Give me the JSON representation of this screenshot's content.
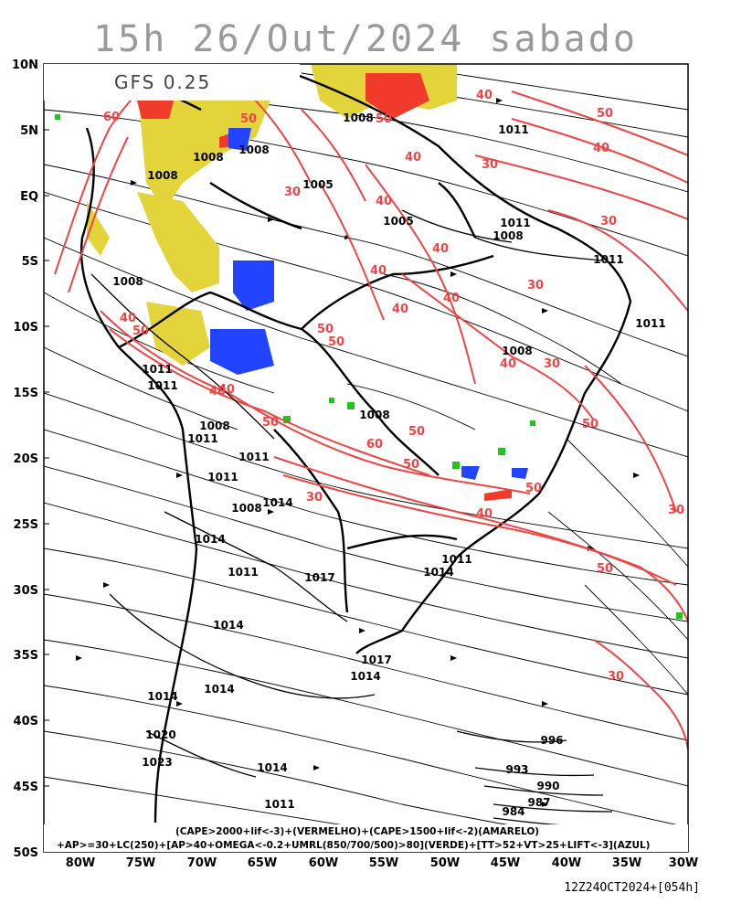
{
  "title": "15h 26/Out/2024 sabado",
  "model": "GFS 0.25",
  "run_stamp": "12Z24OCT2024+[054h]",
  "legend_line1": "(CAPE>2000+lif<-3)+(VERMELHO)+(CAPE>1500+lif<-2)(AMARELO)",
  "legend_line2": "+AP>=30+LC(250)+[AP>40+OMEGA<-0.2+UMRL(850/700/500)>80](VERDE)+[TT>52+VT>25+LIFT<-3](AZUL)",
  "lat_labels": [
    "10N",
    "5N",
    "EQ",
    "5S",
    "10S",
    "15S",
    "20S",
    "25S",
    "30S",
    "35S",
    "40S",
    "45S",
    "50S"
  ],
  "lon_labels": [
    "80W",
    "75W",
    "70W",
    "65W",
    "60W",
    "55W",
    "50W",
    "45W",
    "40W",
    "35W",
    "30W"
  ],
  "isobar_labels": [
    "1008",
    "1008",
    "1008",
    "1005",
    "1011",
    "1008",
    "1005",
    "1011",
    "1008",
    "1011",
    "1008",
    "1008",
    "1011",
    "1011",
    "1008",
    "1011",
    "1008",
    "1011",
    "1011",
    "1011",
    "1014",
    "1014",
    "1011",
    "1017",
    "1011",
    "1014",
    "1014",
    "1017",
    "1014",
    "1014",
    "1020",
    "1023",
    "1014",
    "1011",
    "996",
    "993",
    "990",
    "987",
    "984",
    "1014",
    "1008"
  ],
  "jet_labels": [
    "60",
    "50",
    "50",
    "40",
    "40",
    "40",
    "30",
    "50",
    "40",
    "40",
    "30",
    "40",
    "50",
    "50",
    "40",
    "30",
    "50",
    "40",
    "50",
    "60",
    "50",
    "40",
    "50",
    "30",
    "40",
    "50",
    "30",
    "50",
    "30",
    "30",
    "40",
    "40",
    "50",
    "40",
    "30"
  ],
  "colors": {
    "cape_red": "#f03a2a",
    "cape_yellow": "#e3d43c",
    "green": "#22c422",
    "blue": "#2244ff",
    "jet_red": "#f04545",
    "line": "#000000"
  }
}
